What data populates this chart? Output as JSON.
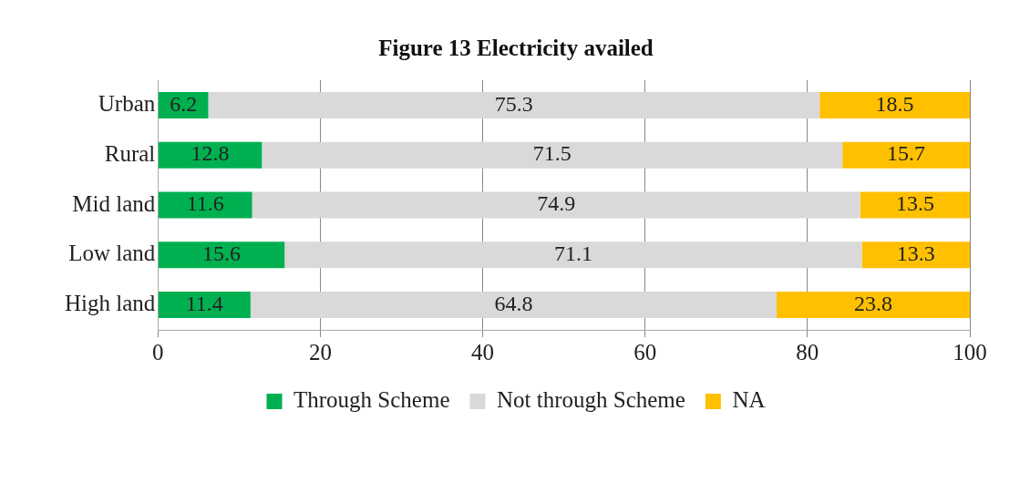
{
  "chart_data": {
    "type": "bar",
    "title": "Figure 13 Electricity availed",
    "orientation": "horizontal",
    "stacked": true,
    "categories": [
      "Urban",
      "Rural",
      "Mid land",
      "Low land",
      "High land"
    ],
    "series": [
      {
        "name": "Through Scheme",
        "color": "#00b050",
        "values": [
          6.2,
          12.8,
          11.6,
          15.6,
          11.4
        ]
      },
      {
        "name": "Not through Scheme",
        "color": "#d9d9d9",
        "values": [
          75.3,
          71.5,
          74.9,
          71.1,
          64.8
        ]
      },
      {
        "name": "NA",
        "color": "#ffc000",
        "values": [
          18.5,
          15.7,
          13.5,
          13.3,
          23.8
        ]
      }
    ],
    "xlim": [
      0,
      100
    ],
    "xticks": [
      0,
      20,
      40,
      60,
      80,
      100
    ],
    "grid": "x",
    "legend": "bottom",
    "data_labels": true
  }
}
